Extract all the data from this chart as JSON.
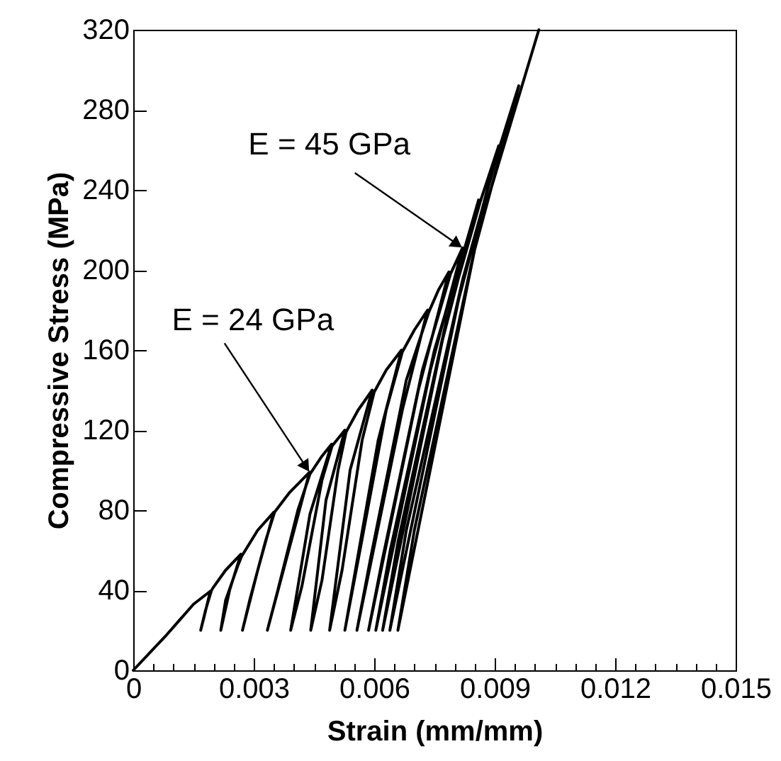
{
  "chart_data": {
    "type": "line",
    "xlabel": "Strain (mm/mm)",
    "ylabel": "Compressive Stress (MPa)",
    "xlim": [
      0,
      0.015
    ],
    "ylim": [
      0,
      320
    ],
    "xticks": [
      0,
      {
        "value": 0.0005,
        "label": null
      },
      {
        "value": 0.001,
        "label": null
      },
      {
        "value": 0.0015,
        "label": null
      },
      {
        "value": 0.002,
        "label": null
      },
      {
        "value": 0.0025,
        "label": null
      },
      0.003,
      {
        "value": 0.0035,
        "label": null
      },
      {
        "value": 0.004,
        "label": null
      },
      {
        "value": 0.0045,
        "label": null
      },
      {
        "value": 0.005,
        "label": null
      },
      {
        "value": 0.0055,
        "label": null
      },
      0.006,
      {
        "value": 0.0065,
        "label": null
      },
      {
        "value": 0.007,
        "label": null
      },
      {
        "value": 0.0075,
        "label": null
      },
      {
        "value": 0.008,
        "label": null
      },
      {
        "value": 0.0085,
        "label": null
      },
      0.009,
      {
        "value": 0.0095,
        "label": null
      },
      {
        "value": 0.01,
        "label": null
      },
      {
        "value": 0.0105,
        "label": null
      },
      {
        "value": 0.011,
        "label": null
      },
      {
        "value": 0.0115,
        "label": null
      },
      0.012,
      {
        "value": 0.0125,
        "label": null
      },
      {
        "value": 0.013,
        "label": null
      },
      {
        "value": 0.0135,
        "label": null
      },
      {
        "value": 0.014,
        "label": null
      },
      {
        "value": 0.0145,
        "label": null
      },
      0.015
    ],
    "yticks": [
      0,
      40,
      80,
      120,
      160,
      200,
      240,
      280,
      320
    ],
    "grid": false,
    "marker": "none",
    "line_style": "solid",
    "annotations": [
      {
        "text": "E = 24 GPa",
        "x": 0.00439,
        "y": 99
      },
      {
        "text": "E = 45 GPa",
        "x": 0.0082,
        "y": 211
      }
    ],
    "series": [
      {
        "color": "#000000",
        "x": [
          0,
          0.0008,
          0.0015,
          0.00195,
          0.0018,
          0.00168,
          0.00178,
          0.0019,
          0.00198,
          0.0023,
          0.00268,
          0.0024,
          0.00218,
          0.0023,
          0.0026,
          0.0027,
          0.0031,
          0.0035,
          0.0031,
          0.00272,
          0.0029,
          0.0033,
          0.00352,
          0.0039,
          0.00439,
          0.0039,
          0.00334,
          0.0036,
          0.0041,
          0.0044,
          0.0047,
          0.00494,
          0.0044,
          0.00392,
          0.0042,
          0.0047,
          0.00495,
          0.00527,
          0.0048,
          0.00442,
          0.0047,
          0.0051,
          0.0053,
          0.0056,
          0.00595,
          0.0054,
          0.00489,
          0.0052,
          0.0057,
          0.006,
          0.0063,
          0.00668,
          0.0061,
          0.00527,
          0.0056,
          0.0063,
          0.0067,
          0.007,
          0.00733,
          0.0067,
          0.00557,
          0.0059,
          0.0068,
          0.00736,
          0.0076,
          0.00786,
          0.0071,
          0.00586,
          0.0062,
          0.0072,
          0.0079,
          0.0082,
          0.0074,
          0.00604,
          0.0064,
          0.0075,
          0.00824,
          0.0086,
          0.0077,
          0.00621,
          0.0066,
          0.0078,
          0.00864,
          0.0091,
          0.0081,
          0.00639,
          0.0068,
          0.0082,
          0.0091,
          0.0096,
          0.0085,
          0.00659,
          0.007,
          0.0086,
          0.0101
        ],
        "values": [
          0,
          17,
          33,
          40,
          30,
          20,
          28,
          38,
          41,
          50,
          58,
          40,
          20,
          35,
          52,
          57,
          70,
          79,
          50,
          20,
          35,
          65,
          79,
          89,
          99,
          62,
          20,
          40,
          80,
          98,
          107,
          113,
          78,
          20,
          42,
          95,
          112,
          120,
          85,
          20,
          45,
          100,
          119,
          130,
          140,
          100,
          20,
          50,
          115,
          139,
          150,
          160,
          115,
          20,
          55,
          130,
          159,
          170,
          180,
          130,
          20,
          55,
          145,
          179,
          190,
          199,
          140,
          20,
          55,
          150,
          198,
          211,
          150,
          20,
          60,
          160,
          210,
          235,
          165,
          20,
          65,
          175,
          234,
          262,
          185,
          20,
          70,
          195,
          260,
          292,
          210,
          20,
          70,
          220,
          320
        ]
      }
    ]
  }
}
